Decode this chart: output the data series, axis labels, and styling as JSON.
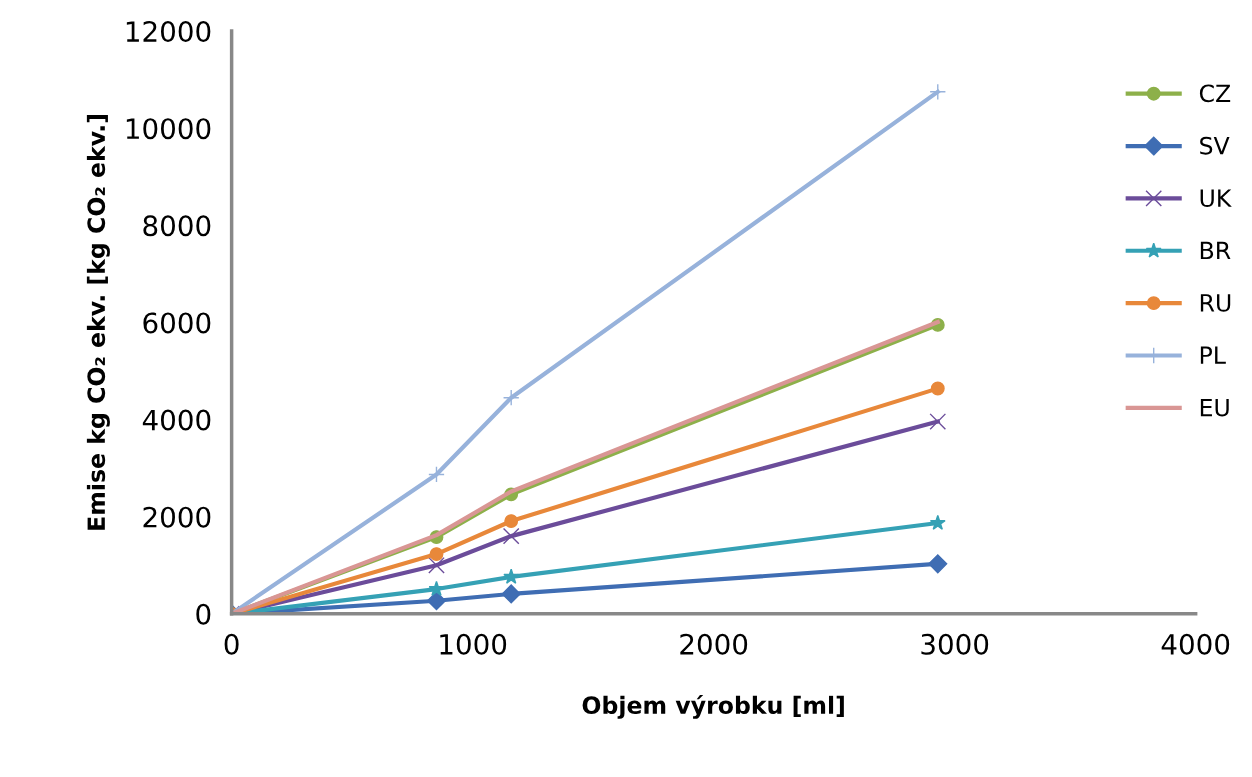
{
  "chart_data": {
    "type": "line",
    "xlabel": "Objem výrobku [ml]",
    "ylabel": "Emise kg CO₂ ekv. [kg CO₂ ekv.]",
    "x": [
      0,
      850,
      1160,
      2930
    ],
    "xlim": [
      0,
      4000
    ],
    "xticks": [
      0,
      1000,
      2000,
      3000,
      4000
    ],
    "ylim": [
      0,
      12000
    ],
    "yticks": [
      0,
      2000,
      4000,
      6000,
      8000,
      10000,
      12000
    ],
    "grid": false,
    "legend": "right",
    "series": [
      {
        "name": "CZ",
        "color": "#8db04a",
        "marker": "circle",
        "values": [
          0,
          1580,
          2460,
          5950
        ]
      },
      {
        "name": "SV",
        "color": "#3f6db3",
        "marker": "diamond",
        "values": [
          0,
          270,
          410,
          1030
        ]
      },
      {
        "name": "UK",
        "color": "#6b4c9a",
        "marker": "cross",
        "values": [
          0,
          1000,
          1600,
          3960
        ]
      },
      {
        "name": "BR",
        "color": "#35a1b5",
        "marker": "star",
        "values": [
          0,
          510,
          760,
          1870
        ]
      },
      {
        "name": "RU",
        "color": "#e8883a",
        "marker": "circle",
        "values": [
          0,
          1230,
          1910,
          4640
        ]
      },
      {
        "name": "PL",
        "color": "#97b2db",
        "marker": "plus",
        "values": [
          0,
          2870,
          4450,
          10750
        ]
      },
      {
        "name": "EU",
        "color": "#d99694",
        "marker": "none",
        "values": [
          0,
          1620,
          2520,
          6010
        ]
      }
    ]
  }
}
